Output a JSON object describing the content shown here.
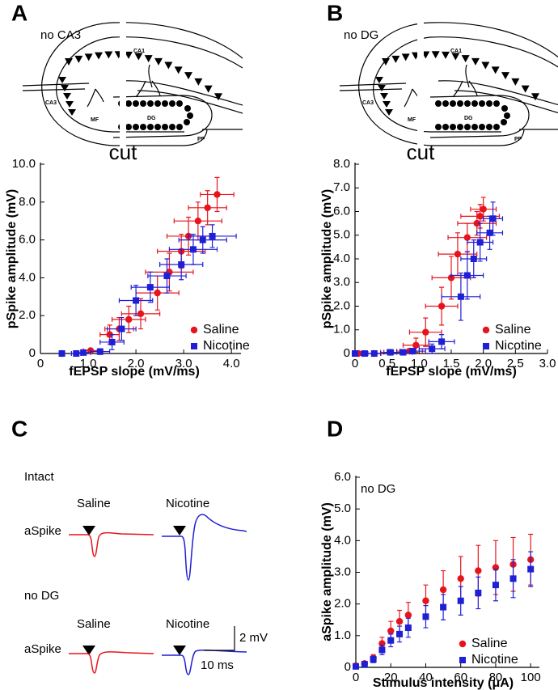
{
  "panel_labels": [
    "A",
    "B",
    "C",
    "D"
  ],
  "diagrams": [
    {
      "caption": "no CA3",
      "cut": "cut",
      "labels": [
        "CA1",
        "CA3",
        "MF",
        "DG",
        "PP"
      ]
    },
    {
      "caption": "no DG",
      "cut": "cut",
      "labels": [
        "CA1",
        "CA3",
        "MF",
        "DG",
        "PP"
      ]
    }
  ],
  "traces": {
    "groups": [
      {
        "title": "Intact",
        "columns": [
          "Saline",
          "Nicotine"
        ],
        "row_label": "aSpike"
      },
      {
        "title": "no DG",
        "columns": [
          "Saline",
          "Nicotine"
        ],
        "row_label": "aSpike"
      }
    ],
    "scale_y": "2 mV",
    "scale_x": "10 ms"
  },
  "chart_data": [
    {
      "type": "scatter",
      "x_label": "fEPSP slope (mV/ms)",
      "y_label": "pSpike amplitude (mV)",
      "xlim": [
        0,
        4.2
      ],
      "ylim": [
        0,
        10
      ],
      "xticks": [
        0,
        {
          "value": 1,
          "label": "1.0"
        },
        {
          "value": 2,
          "label": "2.0"
        },
        {
          "value": 3,
          "label": "3.0"
        },
        {
          "value": 4,
          "label": "4.0"
        }
      ],
      "yticks": [
        0,
        {
          "value": 2,
          "label": "2.0"
        },
        {
          "value": 4,
          "label": "4.0"
        },
        {
          "value": 6,
          "label": "6.0"
        },
        {
          "value": 8,
          "label": "8.0"
        },
        {
          "value": 10,
          "label": "10.0"
        }
      ],
      "legend": "lower right",
      "series": [
        {
          "name": "Saline",
          "color": "#e8141c",
          "marker": "circle",
          "x": [
            0.45,
            1.05,
            1.45,
            1.65,
            1.85,
            2.1,
            2.45,
            2.7,
            2.95,
            3.1,
            3.3,
            3.5,
            3.7
          ],
          "xerr": [
            0.05,
            0.15,
            0.2,
            0.3,
            0.35,
            0.4,
            0.45,
            0.5,
            0.5,
            0.45,
            0.5,
            0.4,
            0.35
          ],
          "values": [
            0,
            0.15,
            1.0,
            1.3,
            1.8,
            2.1,
            3.2,
            4.3,
            5.4,
            6.2,
            7.0,
            7.7,
            8.4
          ],
          "error": [
            0.05,
            0.1,
            0.5,
            0.6,
            0.7,
            0.8,
            0.9,
            1.0,
            0.9,
            1.0,
            1.0,
            0.9,
            0.9
          ]
        },
        {
          "name": "Nicotine",
          "color": "#1f1fd6",
          "marker": "square",
          "x": [
            0.45,
            0.75,
            0.9,
            1.25,
            1.5,
            1.7,
            2.0,
            2.3,
            2.65,
            2.95,
            3.2,
            3.4,
            3.6
          ],
          "xerr": [
            0.05,
            0.1,
            0.15,
            0.2,
            0.25,
            0.3,
            0.35,
            0.4,
            0.4,
            0.45,
            0.5,
            0.5,
            0.5
          ],
          "values": [
            0,
            0,
            0.05,
            0.1,
            0.6,
            1.3,
            2.8,
            3.5,
            4.1,
            4.7,
            5.5,
            6.0,
            6.2
          ],
          "error": [
            0.05,
            0.05,
            0.1,
            0.15,
            0.4,
            0.6,
            0.8,
            0.8,
            0.9,
            0.8,
            0.8,
            0.7,
            0.6
          ]
        }
      ]
    },
    {
      "type": "scatter",
      "x_label": "fEPSP slope (mV/ms)",
      "y_label": "pSpike amplitude (mV)",
      "xlim": [
        0,
        3.0
      ],
      "ylim": [
        0,
        8
      ],
      "xticks": [
        0,
        0.5,
        {
          "value": 1,
          "label": "1.0"
        },
        1.5,
        {
          "value": 2,
          "label": "2.0"
        },
        2.5,
        {
          "value": 3,
          "label": "3.0"
        }
      ],
      "yticks": [
        0,
        {
          "value": 1,
          "label": "1.0"
        },
        {
          "value": 2,
          "label": "2.0"
        },
        {
          "value": 3,
          "label": "3.0"
        },
        {
          "value": 4,
          "label": "4.0"
        },
        {
          "value": 5,
          "label": "5.0"
        },
        {
          "value": 6,
          "label": "6.0"
        },
        {
          "value": 7,
          "label": "7.0"
        },
        {
          "value": 8,
          "label": "8.0"
        }
      ],
      "legend": "lower right",
      "series": [
        {
          "name": "Saline",
          "color": "#e8141c",
          "marker": "circle",
          "x": [
            0,
            0.05,
            0.3,
            0.55,
            0.85,
            0.95,
            1.1,
            1.35,
            1.5,
            1.6,
            1.75,
            1.9,
            1.95,
            2.0
          ],
          "xerr": [
            0.03,
            0.05,
            0.1,
            0.15,
            0.2,
            0.2,
            0.25,
            0.25,
            0.3,
            0.3,
            0.3,
            0.3,
            0.3,
            0.2
          ],
          "values": [
            0,
            0,
            0,
            0.05,
            0.1,
            0.35,
            0.9,
            2.0,
            3.2,
            4.2,
            4.9,
            5.5,
            5.8,
            6.1
          ],
          "error": [
            0.03,
            0.03,
            0.05,
            0.05,
            0.1,
            0.3,
            0.6,
            0.8,
            0.9,
            0.9,
            0.6,
            0.5,
            0.5,
            0.5
          ]
        },
        {
          "name": "Nicotine",
          "color": "#1f1fd6",
          "marker": "square",
          "x": [
            0,
            0.15,
            0.3,
            0.55,
            0.75,
            0.9,
            1.2,
            1.35,
            1.65,
            1.75,
            1.85,
            1.95,
            2.1,
            2.15
          ],
          "xerr": [
            0.03,
            0.05,
            0.1,
            0.1,
            0.15,
            0.2,
            0.2,
            0.2,
            0.3,
            0.25,
            0.2,
            0.2,
            0.2,
            0.15
          ],
          "values": [
            0,
            0,
            0,
            0.05,
            0.05,
            0.1,
            0.2,
            0.5,
            2.4,
            3.3,
            4.0,
            4.7,
            5.1,
            5.7
          ],
          "error": [
            0.03,
            0.03,
            0.05,
            0.05,
            0.05,
            0.1,
            0.2,
            0.3,
            1.0,
            1.0,
            0.8,
            0.8,
            0.7,
            0.7
          ]
        }
      ]
    },
    {
      "type": "scatter",
      "annotation": "no DG",
      "x_label": "Stimulus intensity (μA)",
      "y_label": "aSpike amplitude (mV)",
      "xlim": [
        0,
        105
      ],
      "ylim": [
        0,
        6
      ],
      "xticks": [
        0,
        20,
        40,
        60,
        80,
        100
      ],
      "yticks": [
        0,
        {
          "value": 1,
          "label": "1.0"
        },
        {
          "value": 2,
          "label": "2.0"
        },
        {
          "value": 3,
          "label": "3.0"
        },
        {
          "value": 4,
          "label": "4.0"
        },
        {
          "value": 5,
          "label": "5.0"
        },
        {
          "value": 6,
          "label": "6.0"
        }
      ],
      "legend": "lower right",
      "x": [
        0,
        5,
        10,
        15,
        20,
        25,
        30,
        40,
        50,
        60,
        70,
        80,
        90,
        100
      ],
      "series": [
        {
          "name": "Saline",
          "color": "#e8141c",
          "marker": "circle",
          "values": [
            0.05,
            0.12,
            0.3,
            0.75,
            1.15,
            1.45,
            1.65,
            2.1,
            2.45,
            2.8,
            3.05,
            3.15,
            3.25,
            3.4
          ],
          "error": [
            0.02,
            0.05,
            0.1,
            0.2,
            0.3,
            0.35,
            0.4,
            0.5,
            0.6,
            0.7,
            0.8,
            0.85,
            0.85,
            0.8
          ]
        },
        {
          "name": "Nicotine",
          "color": "#1f1fd6",
          "marker": "square",
          "values": [
            0.03,
            0.1,
            0.25,
            0.55,
            0.85,
            1.05,
            1.25,
            1.6,
            1.9,
            2.1,
            2.35,
            2.6,
            2.8,
            3.1
          ],
          "error": [
            0.02,
            0.05,
            0.1,
            0.15,
            0.2,
            0.25,
            0.3,
            0.35,
            0.4,
            0.45,
            0.5,
            0.5,
            0.6,
            0.55
          ]
        }
      ]
    }
  ]
}
